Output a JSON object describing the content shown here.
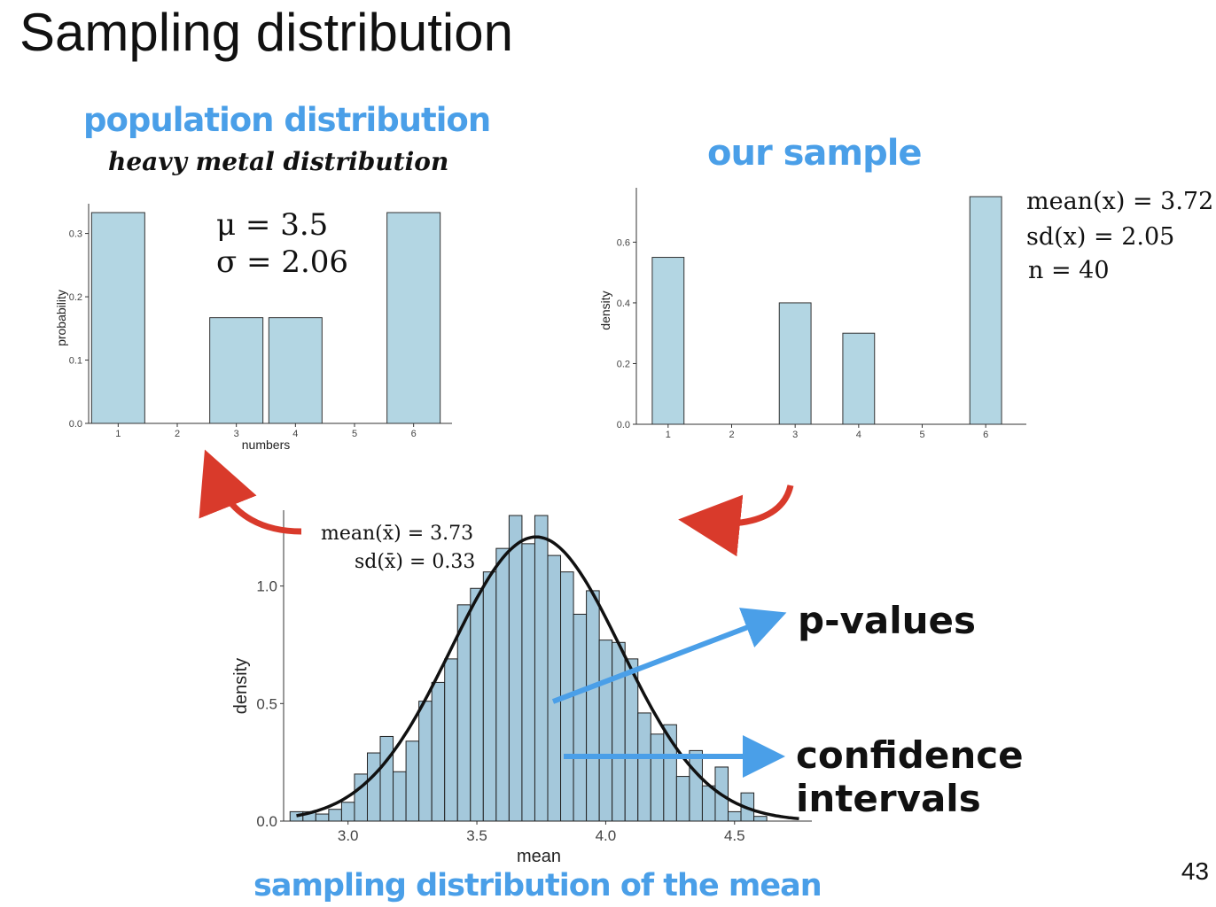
{
  "slide": {
    "title": "Sampling distribution",
    "page_number": "43",
    "pop_heading": "population distribution",
    "pop_subheading": "heavy metal distribution",
    "sample_heading": "our sample",
    "sampling_heading": "sampling distribution of the mean",
    "pop_stats": {
      "mu": "μ = 3.5",
      "sigma": "σ = 2.06"
    },
    "sample_stats": {
      "mean": "mean(x) = 3.72",
      "sd": "sd(x) = 2.05",
      "n": "n = 40"
    },
    "sampling_stats": {
      "mean": "mean(x̄) = 3.73",
      "sd": "sd(x̄) = 0.33"
    },
    "label_pvalues": "p-values",
    "label_ci": "confidence intervals",
    "colors": {
      "bar_fill": "#b3d6e3",
      "bar_fill_hist": "#a4c8db",
      "heading_blue": "#4a9fe8",
      "arrow_red": "#d93a2b",
      "arrow_blue": "#4a9fe8"
    }
  },
  "chart_data": [
    {
      "type": "bar",
      "categories": [
        "1",
        "2",
        "3",
        "4",
        "5",
        "6"
      ],
      "values": [
        0.333,
        0,
        0.167,
        0.167,
        0,
        0.333
      ],
      "xlabel": "numbers",
      "ylabel": "probability",
      "ylim": [
        0,
        0.333
      ],
      "yticks": [
        "0.0",
        "0.1",
        "0.2",
        "0.3"
      ]
    },
    {
      "type": "bar",
      "categories": [
        "1",
        "2",
        "3",
        "4",
        "5",
        "6"
      ],
      "values": [
        0.55,
        0,
        0.4,
        0.3,
        0,
        0.75
      ],
      "xlabel": "",
      "ylabel": "density",
      "ylim": [
        0,
        0.75
      ],
      "yticks": [
        "0.0",
        "0.2",
        "0.4",
        "0.6"
      ]
    },
    {
      "type": "bar",
      "x": [
        2.8,
        2.85,
        2.9,
        2.95,
        3.0,
        3.05,
        3.1,
        3.15,
        3.2,
        3.25,
        3.3,
        3.35,
        3.4,
        3.45,
        3.5,
        3.55,
        3.6,
        3.65,
        3.7,
        3.75,
        3.8,
        3.85,
        3.9,
        3.95,
        4.0,
        4.05,
        4.1,
        4.15,
        4.2,
        4.25,
        4.3,
        4.35,
        4.4,
        4.45,
        4.5,
        4.55,
        4.6
      ],
      "values": [
        0.04,
        0.04,
        0.03,
        0.05,
        0.08,
        0.2,
        0.29,
        0.36,
        0.21,
        0.34,
        0.51,
        0.59,
        0.69,
        0.92,
        0.99,
        1.06,
        1.16,
        1.3,
        1.18,
        1.3,
        1.13,
        1.06,
        0.88,
        0.98,
        0.77,
        0.76,
        0.69,
        0.46,
        0.37,
        0.41,
        0.19,
        0.3,
        0.15,
        0.23,
        0.04,
        0.12,
        0.02
      ],
      "binwidth": 0.05,
      "xlabel": "mean",
      "ylabel": "density",
      "xlim": [
        2.75,
        4.8
      ],
      "ylim": [
        0,
        1.3
      ],
      "xticks": [
        "3.0",
        "3.5",
        "4.0",
        "4.5"
      ],
      "yticks": [
        "0.0",
        "0.5",
        "1.0"
      ],
      "curve": {
        "type": "normal",
        "mean": 3.73,
        "sd": 0.33
      }
    }
  ]
}
